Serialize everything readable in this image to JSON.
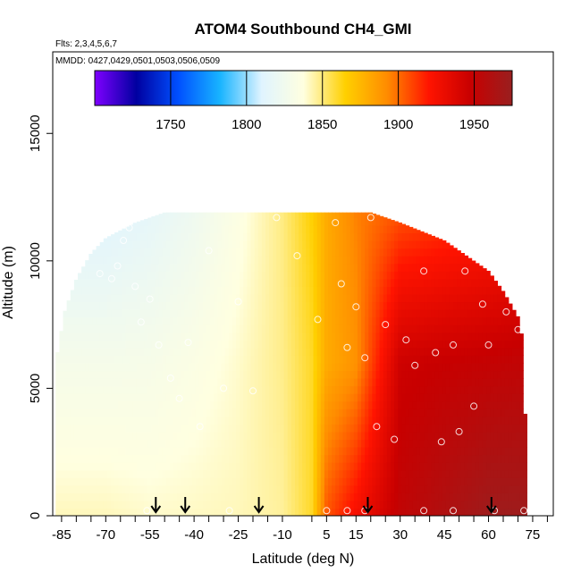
{
  "chart_data": {
    "type": "heatmap",
    "title": "ATOM4 Southbound CH4_GMI",
    "flights_note": "Flts: 2,3,4,5,6,7",
    "dates_note": "MMDD: 0427,0429,0501,0503,0506,0509",
    "xlabel": "Latitude (deg N)",
    "ylabel": "Altitude (m)",
    "xlim": [
      -88,
      82
    ],
    "ylim": [
      0,
      18200
    ],
    "x_ticks": [
      -85,
      -70,
      -55,
      -40,
      -25,
      -10,
      5,
      15,
      30,
      45,
      60,
      75
    ],
    "x_minor_ticks": [
      -80,
      -75,
      -65,
      -60,
      -50,
      -45,
      -35,
      -30,
      -20,
      -15,
      0,
      10,
      20,
      25,
      35,
      40,
      50,
      55,
      65,
      70,
      80
    ],
    "y_ticks": [
      0,
      5000,
      10000,
      15000
    ],
    "colorbar": {
      "min": 1700,
      "max": 1975,
      "ticks": [
        1750,
        1800,
        1850,
        1900,
        1950
      ],
      "colors": [
        "#7f00ff",
        "#0000a0",
        "#0050ff",
        "#18b4ff",
        "#e0f4ff",
        "#ffffe0",
        "#ffd000",
        "#ff8c00",
        "#ff1400",
        "#c80000",
        "#991f1f"
      ]
    },
    "grid": false,
    "legend": "top colorbar",
    "field_profile": {
      "latitude": [
        -85,
        -70,
        -55,
        -40,
        -25,
        -10,
        0,
        5,
        15,
        30,
        45,
        60,
        72
      ],
      "ch4_surface": [
        1842,
        1842,
        1840,
        1841,
        1842,
        1846,
        1860,
        1905,
        1925,
        1952,
        1962,
        1972,
        1972
      ],
      "ch4_mid": [
        1829,
        1829,
        1830,
        1834,
        1840,
        1848,
        1860,
        1880,
        1890,
        1945,
        1948,
        1950,
        1952
      ],
      "ch4_upper": [
        1810,
        1810,
        1815,
        1823,
        1835,
        1849,
        1865,
        1880,
        1895,
        1905,
        1910,
        1915,
        1920
      ]
    },
    "coverage": {
      "latitude": [
        -87,
        -84,
        -80,
        -75,
        -70,
        -60,
        -55,
        -50,
        -40,
        -30,
        5,
        20,
        30,
        45,
        55,
        60,
        65,
        71,
        72
      ],
      "altitude_top": [
        6000,
        8000,
        9300,
        10300,
        10900,
        11500,
        11700,
        11900,
        11900,
        11900,
        11900,
        11900,
        11500,
        10800,
        10000,
        9600,
        8800,
        7600,
        4000
      ]
    },
    "sample_points": [
      {
        "lat": -72,
        "alt": 9500
      },
      {
        "lat": -68,
        "alt": 9300
      },
      {
        "lat": -66,
        "alt": 9800
      },
      {
        "lat": -64,
        "alt": 10800
      },
      {
        "lat": -62,
        "alt": 11300
      },
      {
        "lat": -60,
        "alt": 9000
      },
      {
        "lat": -58,
        "alt": 7600
      },
      {
        "lat": -55,
        "alt": 8500
      },
      {
        "lat": -52,
        "alt": 6700
      },
      {
        "lat": -48,
        "alt": 5400
      },
      {
        "lat": -45,
        "alt": 4600
      },
      {
        "lat": -42,
        "alt": 6800
      },
      {
        "lat": -38,
        "alt": 3500
      },
      {
        "lat": -35,
        "alt": 10400
      },
      {
        "lat": -30,
        "alt": 5000
      },
      {
        "lat": -25,
        "alt": 8400
      },
      {
        "lat": -20,
        "alt": 4900
      },
      {
        "lat": -12,
        "alt": 11700
      },
      {
        "lat": -5,
        "alt": 10200
      },
      {
        "lat": 2,
        "alt": 7700
      },
      {
        "lat": 8,
        "alt": 11500
      },
      {
        "lat": 10,
        "alt": 9100
      },
      {
        "lat": 12,
        "alt": 6600
      },
      {
        "lat": 15,
        "alt": 8200
      },
      {
        "lat": 18,
        "alt": 6200
      },
      {
        "lat": 20,
        "alt": 11700
      },
      {
        "lat": 22,
        "alt": 3500
      },
      {
        "lat": 25,
        "alt": 7500
      },
      {
        "lat": 28,
        "alt": 3000
      },
      {
        "lat": 32,
        "alt": 6900
      },
      {
        "lat": 35,
        "alt": 5900
      },
      {
        "lat": 38,
        "alt": 9600
      },
      {
        "lat": 42,
        "alt": 6400
      },
      {
        "lat": 44,
        "alt": 2900
      },
      {
        "lat": 48,
        "alt": 6700
      },
      {
        "lat": 50,
        "alt": 3300
      },
      {
        "lat": 52,
        "alt": 9600
      },
      {
        "lat": 55,
        "alt": 4300
      },
      {
        "lat": 58,
        "alt": 8300
      },
      {
        "lat": 60,
        "alt": 6700
      },
      {
        "lat": 66,
        "alt": 8000
      },
      {
        "lat": 70,
        "alt": 7300
      },
      {
        "lat": -56,
        "alt": 200
      },
      {
        "lat": -28,
        "alt": 200
      },
      {
        "lat": 5,
        "alt": 200
      },
      {
        "lat": 12,
        "alt": 200
      },
      {
        "lat": 18,
        "alt": 200
      },
      {
        "lat": 38,
        "alt": 200
      },
      {
        "lat": 48,
        "alt": 200
      },
      {
        "lat": 62,
        "alt": 200
      },
      {
        "lat": 72,
        "alt": 200
      }
    ],
    "arrow_latitudes": [
      -53,
      -43,
      -18,
      19,
      61
    ]
  }
}
